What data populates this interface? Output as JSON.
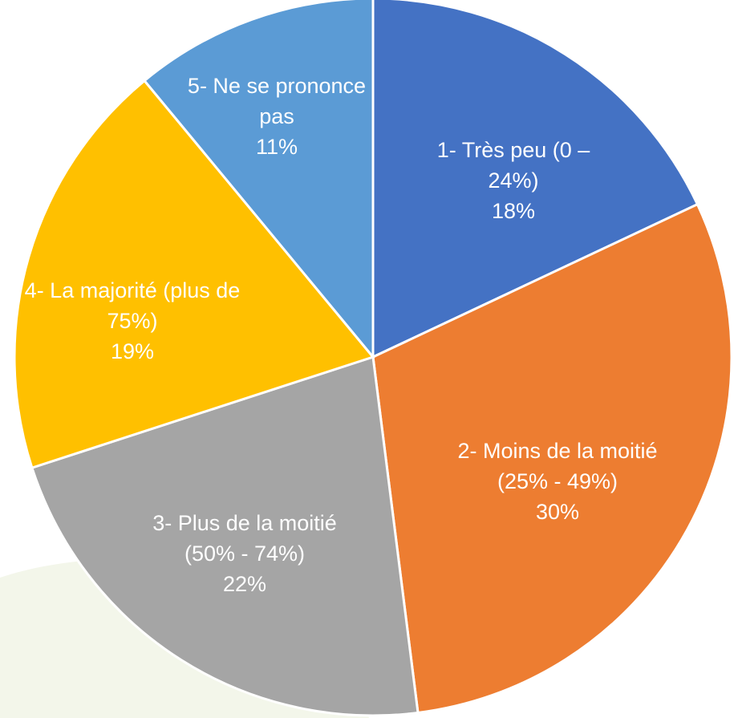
{
  "chart_data": {
    "type": "pie",
    "categories": [
      "1- Très peu (0 – 24%)",
      "2- Moins de la moitié (25% - 49%)",
      "3- Plus de la moitié (50% - 74%)",
      "4- La majorité (plus de 75%)",
      "5- Ne se prononce pas"
    ],
    "values": [
      18,
      30,
      22,
      19,
      11
    ],
    "value_labels": [
      "18%",
      "30%",
      "22%",
      "19%",
      "11%"
    ],
    "colors": [
      "#4472c4",
      "#ed7d31",
      "#a5a5a5",
      "#ffc000",
      "#5b9bd5"
    ]
  }
}
